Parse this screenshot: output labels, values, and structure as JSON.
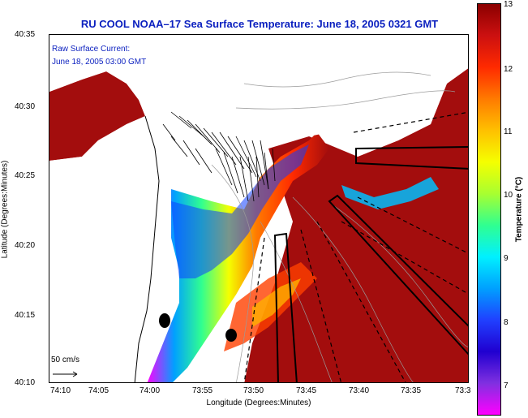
{
  "title": "RU COOL  NOAA–17  Sea Surface Temperature:  June 18, 2005 0321 GMT",
  "legend": {
    "line1": "Raw Surface Current:",
    "line2": "June 18, 2005 03:00 GMT",
    "scale_label": "50 cm/s"
  },
  "axes": {
    "xlabel": "Longitude (Degrees:Minutes)",
    "ylabel": "Latitude (Degrees:Minutes)",
    "xticks": [
      "74:10",
      "74:05",
      "74:00",
      "73:55",
      "73:50",
      "73:45",
      "73:40",
      "73:35",
      "73:3"
    ],
    "yticks": [
      "40:35",
      "40:30",
      "40:25",
      "40:20",
      "40:15",
      "40:10"
    ]
  },
  "colorbar": {
    "title": "Temperature (°C)",
    "ticks": [
      "13",
      "12",
      "11",
      "10",
      "9",
      "8",
      "7"
    ],
    "stops": [
      "#8b0000",
      "#cc1010",
      "#ff2a00",
      "#ff7a00",
      "#ffc000",
      "#f5ff00",
      "#a8ff30",
      "#30ff90",
      "#00f0ff",
      "#00a0ff",
      "#2040ff",
      "#2000d0",
      "#8030e0",
      "#ff00ff"
    ]
  },
  "colors": {
    "title": "#0a1fbf",
    "warm_water": "#a30d0d",
    "land": "#ffffff"
  },
  "chart_data": {
    "type": "heatmap",
    "title": "RU COOL  NOAA–17  Sea Surface Temperature:  June 18, 2005 0321 GMT",
    "xlabel": "Longitude (Degrees:Minutes)",
    "ylabel": "Latitude (Degrees:Minutes)",
    "colorbar_label": "Temperature (°C)",
    "colorbar_range": [
      6.5,
      13
    ],
    "xlim": [
      "74:10",
      "73:30"
    ],
    "ylim": [
      "40:10",
      "40:35"
    ]
  }
}
